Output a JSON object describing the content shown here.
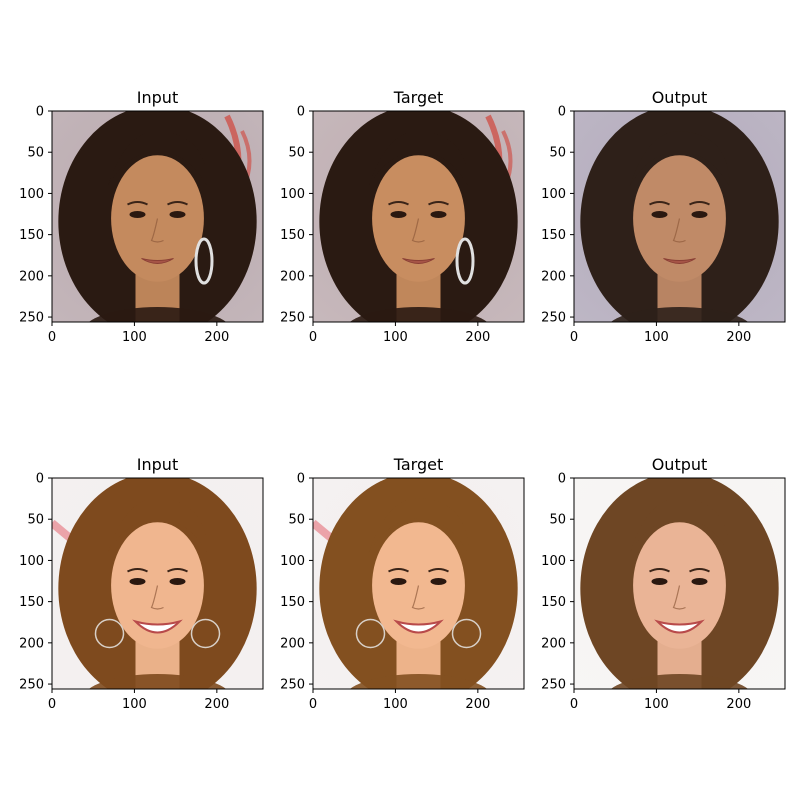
{
  "figure": {
    "rows": 2,
    "cols": 3
  },
  "panel_titles": [
    "Input",
    "Target",
    "Output"
  ],
  "chart_data": {
    "type": "image-grid",
    "xlim": [
      0,
      256
    ],
    "ylim": [
      256,
      0
    ],
    "xticks": [
      0,
      100,
      200
    ],
    "yticks": [
      0,
      50,
      100,
      150,
      200,
      250
    ],
    "panels": [
      {
        "row": 0,
        "col": 0,
        "title": "Input",
        "subject": "woman-dark-wavy-hair-earring",
        "bg": "#b9a9ae",
        "hair": "#2a1a12",
        "skin": "#c48a5e",
        "accent": "#d0453b"
      },
      {
        "row": 0,
        "col": 1,
        "title": "Target",
        "subject": "woman-dark-wavy-hair-earring",
        "bg": "#bdacb0",
        "hair": "#2a1a12",
        "skin": "#c88d60",
        "accent": "#d0453b"
      },
      {
        "row": 0,
        "col": 2,
        "title": "Output",
        "subject": "woman-dark-wavy-hair",
        "bg": "#b2aabb",
        "hair": "#2e2019",
        "skin": "#c08a67",
        "accent": "#8a6d7a"
      },
      {
        "row": 1,
        "col": 0,
        "title": "Input",
        "subject": "woman-auburn-hair-hoop-earrings",
        "bg": "#f2eeee",
        "hair": "#7e4a1e",
        "skin": "#f0b68f",
        "accent": "#e05a70"
      },
      {
        "row": 1,
        "col": 1,
        "title": "Target",
        "subject": "woman-auburn-hair-hoop-earrings",
        "bg": "#f3efef",
        "hair": "#835020",
        "skin": "#f2b890",
        "accent": "#e05a70"
      },
      {
        "row": 1,
        "col": 2,
        "title": "Output",
        "subject": "woman-auburn-hair",
        "bg": "#f6f4f3",
        "hair": "#6e4624",
        "skin": "#eab496",
        "accent": "#c77a6a"
      }
    ]
  }
}
